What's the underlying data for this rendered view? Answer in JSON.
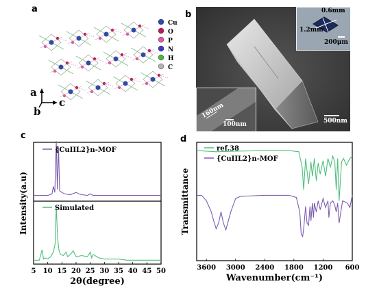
{
  "panels": {
    "a": "a",
    "b": "b",
    "c": "c",
    "d": "d"
  },
  "panel_a": {
    "legend": [
      {
        "label": "Cu",
        "color": "#3548a8"
      },
      {
        "label": "O",
        "color": "#c2185b"
      },
      {
        "label": "P",
        "color": "#e05aa0"
      },
      {
        "label": "N",
        "color": "#3a3ad0"
      },
      {
        "label": "H",
        "color": "#49b849"
      },
      {
        "label": "C",
        "color": "#b4b4b4"
      }
    ],
    "axes": {
      "a": "a",
      "b": "b",
      "c": "c"
    }
  },
  "panel_b": {
    "inset_top_dim1": "0.6mm",
    "inset_top_dim2": "1.2mm",
    "inset_top_scale": "200μm",
    "inset_bottom_dim": "160nm",
    "inset_bottom_scale": "100nm",
    "main_scale": "500nm"
  },
  "chart_data": [
    {
      "type": "line",
      "panel": "c",
      "xlabel": "2θ(degree)",
      "ylabel": "Intensity(a.u)",
      "xlim": [
        5,
        50
      ],
      "xticks": [
        "5",
        "10",
        "15",
        "20",
        "25",
        "30",
        "35",
        "40",
        "45",
        "50"
      ],
      "series": [
        {
          "name": "{CuIIL2}n-MOF",
          "color": "#7b5cb0",
          "x": [
            5,
            10,
            11.5,
            12,
            12.5,
            13,
            13.4,
            13.8,
            14.2,
            15,
            16,
            18,
            20,
            21,
            22,
            24,
            25,
            26,
            28,
            30,
            32,
            35,
            38,
            40,
            45,
            50
          ],
          "y": [
            2,
            2,
            3,
            8,
            4,
            38,
            6,
            34,
            5,
            4,
            3,
            2.5,
            4,
            3,
            2.5,
            2,
            3,
            2,
            2,
            2,
            2,
            2,
            2,
            2,
            2,
            2
          ]
        },
        {
          "name": "Simulated",
          "color": "#4dbf7a",
          "x": [
            5,
            7,
            8,
            8.5,
            9,
            10,
            11,
            12,
            12.6,
            13,
            13.5,
            14,
            14.5,
            15.5,
            16.5,
            17,
            18,
            19,
            20,
            22,
            24,
            25,
            25.5,
            26,
            28,
            30,
            32,
            35,
            38,
            40,
            45,
            50
          ],
          "y": [
            1,
            1,
            10,
            2,
            3,
            2,
            4,
            8,
            15,
            47,
            20,
            9,
            6,
            5,
            8,
            4,
            6,
            9,
            4,
            5,
            4,
            8,
            3,
            6,
            3,
            2,
            2,
            2,
            1,
            1,
            1,
            1
          ]
        }
      ]
    },
    {
      "type": "line",
      "panel": "d",
      "xlabel": "Wavenumber(cm⁻¹)",
      "ylabel": "Transmittance",
      "xlim": [
        3800,
        600
      ],
      "xticks": [
        "3600",
        "3000",
        "2400",
        "1800",
        "1200",
        "600"
      ],
      "series": [
        {
          "name": "ref.38",
          "color": "#4dbf7a",
          "x": [
            3800,
            3400,
            3000,
            2400,
            1900,
            1700,
            1630,
            1600,
            1560,
            1500,
            1450,
            1420,
            1380,
            1340,
            1300,
            1260,
            1200,
            1150,
            1100,
            1050,
            1000,
            960,
            930,
            900,
            870,
            820,
            780,
            720,
            650,
            600
          ],
          "y": [
            95,
            94,
            94.5,
            95,
            95,
            94,
            80,
            60,
            88,
            65,
            85,
            72,
            88,
            68,
            84,
            74,
            86,
            72,
            88,
            80,
            90,
            85,
            60,
            88,
            50,
            85,
            88,
            82,
            88,
            90
          ]
        },
        {
          "name": "{CuIIL2}n-MOF",
          "color": "#7b5cb0",
          "x": [
            3800,
            3700,
            3600,
            3500,
            3450,
            3400,
            3350,
            3300,
            3250,
            3200,
            3100,
            3050,
            3000,
            2900,
            2400,
            1900,
            1750,
            1680,
            1650,
            1620,
            1600,
            1560,
            1530,
            1500,
            1470,
            1450,
            1420,
            1400,
            1380,
            1340,
            1300,
            1260,
            1200,
            1150,
            1100,
            1080,
            1050,
            1000,
            960,
            930,
            900,
            870,
            800,
            700,
            650,
            600
          ],
          "y": [
            55,
            55,
            50,
            40,
            32,
            25,
            30,
            40,
            30,
            24,
            40,
            46,
            52,
            54,
            55,
            55,
            53,
            40,
            20,
            18,
            25,
            45,
            30,
            28,
            45,
            32,
            48,
            35,
            48,
            40,
            50,
            42,
            52,
            44,
            50,
            35,
            48,
            50,
            46,
            40,
            48,
            30,
            50,
            48,
            44,
            55
          ]
        }
      ]
    }
  ]
}
